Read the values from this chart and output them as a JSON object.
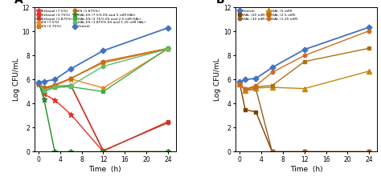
{
  "time": [
    0,
    1,
    3,
    6,
    12,
    24
  ],
  "panel_A": {
    "control": [
      5.75,
      5.85,
      6.0,
      6.9,
      8.4,
      10.3
    ],
    "ethanol_7_5": [
      5.6,
      4.8,
      4.3,
      3.1,
      0.0,
      0.0
    ],
    "ethanol_3_75": [
      5.6,
      5.3,
      5.4,
      5.5,
      0.05,
      2.5
    ],
    "ethanol_1_875": [
      5.6,
      5.35,
      5.45,
      5.5,
      0.1,
      2.4
    ],
    "es_7_5": [
      5.6,
      5.3,
      5.5,
      6.05,
      5.3,
      8.55
    ],
    "es_3_75": [
      5.6,
      5.3,
      5.55,
      6.1,
      7.4,
      8.55
    ],
    "es_1_875": [
      5.6,
      5.3,
      5.55,
      6.1,
      7.5,
      8.6
    ],
    "hal_es_7_5": [
      5.75,
      4.35,
      0.0,
      0.0,
      0.0,
      0.0
    ],
    "hal_es_3_75": [
      5.75,
      5.0,
      5.35,
      5.4,
      5.0,
      8.6
    ],
    "hal_es_1_875": [
      5.75,
      5.1,
      5.4,
      5.5,
      7.1,
      8.55
    ]
  },
  "panel_B": {
    "control": [
      5.8,
      6.0,
      6.1,
      7.0,
      8.5,
      10.35
    ],
    "hal_20": [
      5.65,
      3.5,
      3.3,
      0.0,
      0.0,
      0.0
    ],
    "hal_10": [
      5.6,
      5.1,
      5.2,
      0.0,
      0.0,
      0.0
    ],
    "hal_5": [
      5.6,
      5.1,
      5.3,
      5.35,
      5.25,
      6.7
    ],
    "hal_2_5": [
      5.6,
      5.2,
      5.4,
      5.5,
      7.5,
      8.6
    ],
    "hal_1_25": [
      5.6,
      5.2,
      5.5,
      6.6,
      8.0,
      10.05
    ]
  },
  "ylabel": "Log CFU/mL",
  "xlabel": "Time  (h)",
  "ylim": [
    0,
    12
  ],
  "yticks": [
    0,
    2,
    4,
    6,
    8,
    10,
    12
  ],
  "xticks": [
    0,
    4,
    8,
    12,
    16,
    20,
    24
  ]
}
